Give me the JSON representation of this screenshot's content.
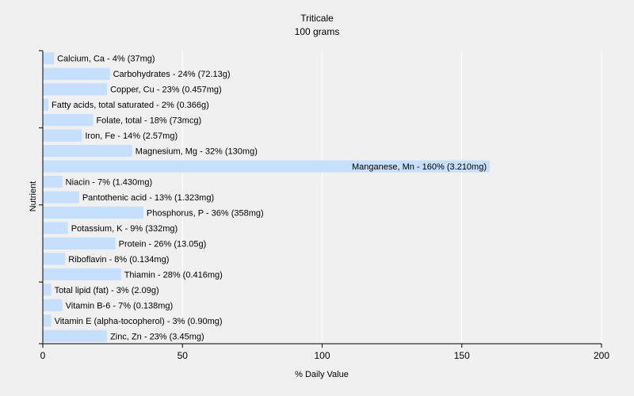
{
  "chart_data": {
    "type": "bar",
    "orientation": "horizontal",
    "title": "Triticale",
    "subtitle": "100 grams",
    "xlabel": "% Daily Value",
    "ylabel": "Nutrient",
    "xlim": [
      0,
      200
    ],
    "xticks": [
      0,
      50,
      100,
      150,
      200
    ],
    "grid": true,
    "bar_color": "#c6dffc",
    "grid_color": "#ffffff",
    "background": "#f0f0f0",
    "categories": [
      "Calcium, Ca",
      "Carbohydrates",
      "Copper, Cu",
      "Fatty acids, total saturated",
      "Folate, total",
      "Iron, Fe",
      "Magnesium, Mg",
      "Manganese, Mn",
      "Niacin",
      "Pantothenic acid",
      "Phosphorus, P",
      "Potassium, K",
      "Protein",
      "Riboflavin",
      "Thiamin",
      "Total lipid (fat)",
      "Vitamin B-6",
      "Vitamin E (alpha-tocopherol)",
      "Zinc, Zn"
    ],
    "values": [
      4,
      24,
      23,
      2,
      18,
      14,
      32,
      160,
      7,
      13,
      36,
      9,
      26,
      8,
      28,
      3,
      7,
      3,
      23
    ],
    "bar_labels": [
      "Calcium, Ca - 4% (37mg)",
      "Carbohydrates - 24% (72.13g)",
      "Copper, Cu - 23% (0.457mg)",
      "Fatty acids, total saturated - 2% (0.366g)",
      "Folate, total - 18% (73mcg)",
      "Iron, Fe - 14% (2.57mg)",
      "Magnesium, Mg - 32% (130mg)",
      "Manganese, Mn - 160% (3.210mg)",
      "Niacin - 7% (1.430mg)",
      "Pantothenic acid - 13% (1.323mg)",
      "Phosphorus, P - 36% (358mg)",
      "Potassium, K - 9% (332mg)",
      "Protein - 26% (13.05g)",
      "Riboflavin - 8% (0.134mg)",
      "Thiamin - 28% (0.416mg)",
      "Total lipid (fat) - 3% (2.09g)",
      "Vitamin B-6 - 7% (0.138mg)",
      "Vitamin E (alpha-tocopherol) - 3% (0.90mg)",
      "Zinc, Zn - 23% (3.45mg)"
    ]
  }
}
